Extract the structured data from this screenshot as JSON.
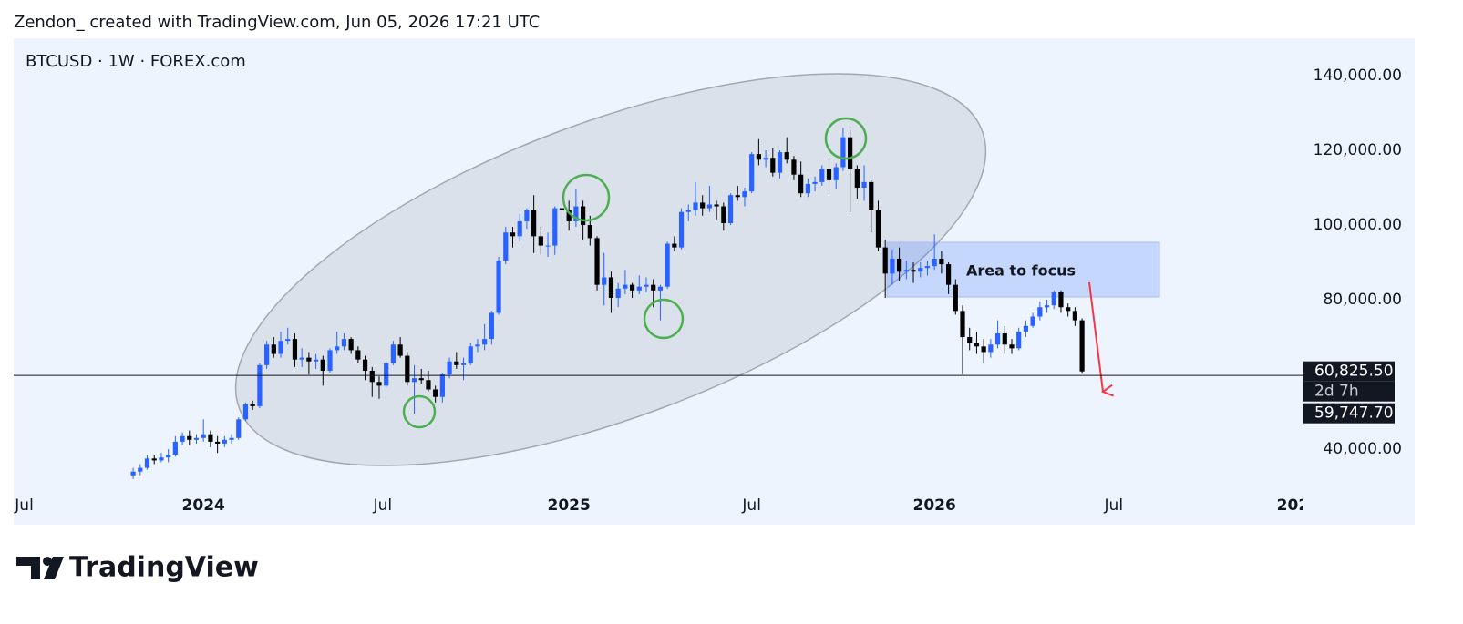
{
  "header": {
    "attribution": "Zendon_ created with TradingView.com, Jun 05, 2026 17:21 UTC"
  },
  "footer": {
    "brand": "TradingView"
  },
  "chart_data": {
    "type": "candlestick",
    "title": "BTCUSD · 1W · FOREX.com",
    "up_color": "#2962ff",
    "down_color": "#000000",
    "grid": false,
    "xlim": [
      -17,
      166.5
    ],
    "ylim": [
      31000,
      150000
    ],
    "xticks": [
      {
        "value": -15.5,
        "label": "Jul"
      },
      {
        "value": 10,
        "label": "2024"
      },
      {
        "value": 35.5,
        "label": "Jul"
      },
      {
        "value": 62,
        "label": "2025"
      },
      {
        "value": 88,
        "label": "Jul"
      },
      {
        "value": 114,
        "label": "2026"
      },
      {
        "value": 139.5,
        "label": "Jul"
      },
      {
        "value": 165,
        "label": "202"
      }
    ],
    "yticks": [
      {
        "value": 40000,
        "label": "40,000.00"
      },
      {
        "value": 80000,
        "label": "80,000.00"
      },
      {
        "value": 100000,
        "label": "100,000.00"
      },
      {
        "value": 120000,
        "label": "120,000.00"
      },
      {
        "value": 140000,
        "label": "140,000.00"
      }
    ],
    "price_labels": [
      {
        "value": 60825.5,
        "label": "60,825.50"
      },
      {
        "value": 59747.7,
        "label": "59,747.70"
      }
    ],
    "countdown": "2d 7h",
    "annotations": [
      "Area to focus"
    ],
    "candles": [
      [
        33000,
        35000,
        32000,
        34000
      ],
      [
        34000,
        36000,
        33000,
        35000
      ],
      [
        35000,
        38500,
        34500,
        37500
      ],
      [
        37500,
        38500,
        36000,
        37000
      ],
      [
        37000,
        39000,
        36500,
        37800
      ],
      [
        37800,
        40000,
        36500,
        38500
      ],
      [
        38500,
        43500,
        38000,
        42000
      ],
      [
        42000,
        44500,
        41000,
        43500
      ],
      [
        43500,
        45000,
        41000,
        42500
      ],
      [
        42500,
        44000,
        41500,
        43000
      ],
      [
        43000,
        48000,
        42000,
        44000
      ],
      [
        44000,
        45000,
        40500,
        42000
      ],
      [
        42000,
        43500,
        39000,
        41500
      ],
      [
        41500,
        43500,
        40500,
        42500
      ],
      [
        42500,
        44000,
        41500,
        43000
      ],
      [
        43000,
        48500,
        42500,
        48000
      ],
      [
        48000,
        52500,
        47500,
        52000
      ],
      [
        52000,
        53000,
        50500,
        51500
      ],
      [
        51500,
        63000,
        51000,
        62500
      ],
      [
        62500,
        69000,
        61500,
        68000
      ],
      [
        68000,
        70000,
        64500,
        65500
      ],
      [
        65500,
        71500,
        64500,
        69000
      ],
      [
        69000,
        72500,
        68000,
        69500
      ],
      [
        69500,
        71000,
        62000,
        64000
      ],
      [
        64000,
        67000,
        62000,
        64500
      ],
      [
        64500,
        66000,
        60000,
        63500
      ],
      [
        63500,
        65500,
        61500,
        64000
      ],
      [
        64000,
        65000,
        57000,
        61000
      ],
      [
        61000,
        67000,
        60500,
        66500
      ],
      [
        66500,
        71500,
        65500,
        67500
      ],
      [
        67500,
        71000,
        66500,
        69500
      ],
      [
        69500,
        70000,
        65500,
        66500
      ],
      [
        66500,
        67500,
        63000,
        64000
      ],
      [
        64000,
        65000,
        58500,
        61000
      ],
      [
        61000,
        62000,
        54000,
        58000
      ],
      [
        58000,
        59500,
        53500,
        57000
      ],
      [
        57000,
        63500,
        56500,
        63000
      ],
      [
        63000,
        69000,
        62500,
        68000
      ],
      [
        68000,
        70000,
        64500,
        65000
      ],
      [
        65000,
        66000,
        57000,
        58000
      ],
      [
        58000,
        62500,
        49500,
        59000
      ],
      [
        59000,
        61500,
        57500,
        58500
      ],
      [
        58500,
        61000,
        55500,
        56000
      ],
      [
        56000,
        57000,
        52500,
        54000
      ],
      [
        54000,
        60500,
        52500,
        60000
      ],
      [
        60000,
        64500,
        59000,
        63500
      ],
      [
        63500,
        66000,
        61500,
        62500
      ],
      [
        62500,
        64500,
        58500,
        63000
      ],
      [
        63000,
        68500,
        62500,
        67500
      ],
      [
        67500,
        69500,
        66000,
        68000
      ],
      [
        68000,
        73500,
        66500,
        69500
      ],
      [
        69500,
        77000,
        68000,
        76500
      ],
      [
        76500,
        91500,
        76000,
        90500
      ],
      [
        90500,
        99500,
        89500,
        98000
      ],
      [
        98000,
        99500,
        94000,
        97000
      ],
      [
        97000,
        103000,
        95500,
        101000
      ],
      [
        101000,
        104500,
        99000,
        104000
      ],
      [
        104000,
        108000,
        92500,
        97000
      ],
      [
        97000,
        99500,
        92000,
        94500
      ],
      [
        94500,
        98000,
        91500,
        94500
      ],
      [
        94500,
        105000,
        92000,
        104500
      ],
      [
        104500,
        106000,
        100000,
        104000
      ],
      [
        104000,
        106500,
        98500,
        101000
      ],
      [
        101000,
        109500,
        99500,
        105000
      ],
      [
        105000,
        106500,
        96000,
        100000
      ],
      [
        100000,
        102500,
        94500,
        96500
      ],
      [
        96500,
        97000,
        82500,
        84000
      ],
      [
        84000,
        92500,
        78500,
        86000
      ],
      [
        86000,
        87500,
        76500,
        80500
      ],
      [
        80500,
        84500,
        78000,
        83000
      ],
      [
        83000,
        88000,
        81500,
        84000
      ],
      [
        84000,
        84500,
        80500,
        82500
      ],
      [
        82500,
        86500,
        81500,
        83500
      ],
      [
        83500,
        86000,
        82000,
        84000
      ],
      [
        84000,
        85500,
        78000,
        82500
      ],
      [
        82500,
        84000,
        74500,
        83500
      ],
      [
        83500,
        95500,
        83000,
        95000
      ],
      [
        95000,
        97000,
        93000,
        94000
      ],
      [
        94000,
        104500,
        93500,
        103500
      ],
      [
        103500,
        105500,
        101000,
        104000
      ],
      [
        104000,
        111500,
        102500,
        106000
      ],
      [
        106000,
        108000,
        102500,
        104500
      ],
      [
        104500,
        110500,
        103500,
        105500
      ],
      [
        105500,
        106500,
        101500,
        105000
      ],
      [
        105000,
        106000,
        98500,
        100500
      ],
      [
        100500,
        108500,
        100000,
        108000
      ],
      [
        108000,
        110500,
        106500,
        107500
      ],
      [
        107500,
        110000,
        105000,
        109000
      ],
      [
        109000,
        119500,
        108500,
        119000
      ],
      [
        119000,
        123000,
        116000,
        117500
      ],
      [
        117500,
        120000,
        115500,
        118000
      ],
      [
        118000,
        120500,
        113000,
        114000
      ],
      [
        114000,
        120000,
        112500,
        119500
      ],
      [
        119500,
        123500,
        116500,
        117500
      ],
      [
        117500,
        118500,
        112000,
        113500
      ],
      [
        113500,
        117000,
        107500,
        108500
      ],
      [
        108500,
        112500,
        107500,
        111000
      ],
      [
        111000,
        113000,
        109000,
        111500
      ],
      [
        111500,
        116000,
        110500,
        115000
      ],
      [
        115000,
        117500,
        108500,
        112000
      ],
      [
        112000,
        116500,
        109500,
        115500
      ],
      [
        115500,
        126000,
        114500,
        123500
      ],
      [
        123500,
        125500,
        103500,
        115000
      ],
      [
        115000,
        116000,
        107000,
        110000
      ],
      [
        110000,
        116000,
        106500,
        111500
      ],
      [
        111500,
        112000,
        98000,
        104000
      ],
      [
        104000,
        106500,
        93000,
        94000
      ],
      [
        94000,
        96000,
        80500,
        87000
      ],
      [
        87000,
        93500,
        84000,
        91000
      ],
      [
        91000,
        94000,
        85000,
        87500
      ],
      [
        87500,
        90500,
        85500,
        88000
      ],
      [
        88000,
        90000,
        84500,
        87500
      ],
      [
        87500,
        90000,
        86000,
        88500
      ],
      [
        88500,
        90500,
        86500,
        89000
      ],
      [
        89000,
        97500,
        88000,
        91000
      ],
      [
        91000,
        93000,
        87000,
        89500
      ],
      [
        89500,
        90000,
        81500,
        84000
      ],
      [
        84000,
        85500,
        76000,
        77000
      ],
      [
        77000,
        78500,
        60000,
        70000
      ],
      [
        70000,
        72500,
        66500,
        68500
      ],
      [
        68500,
        71500,
        65500,
        67500
      ],
      [
        67500,
        69500,
        63000,
        66000
      ],
      [
        66000,
        69500,
        64500,
        68000
      ],
      [
        68000,
        74500,
        67000,
        71000
      ],
      [
        71000,
        73000,
        65500,
        68000
      ],
      [
        68000,
        69500,
        65500,
        67000
      ],
      [
        67000,
        72500,
        66500,
        71500
      ],
      [
        71500,
        74500,
        70000,
        73000
      ],
      [
        73000,
        76500,
        72500,
        75500
      ],
      [
        75500,
        79500,
        74500,
        78000
      ],
      [
        78000,
        80000,
        76500,
        78500
      ],
      [
        78500,
        82500,
        77500,
        82000
      ],
      [
        82000,
        82500,
        76500,
        78000
      ],
      [
        78000,
        79000,
        75500,
        77000
      ],
      [
        77000,
        78000,
        73000,
        74500
      ],
      [
        74500,
        75000,
        60200,
        60825.5
      ]
    ]
  }
}
